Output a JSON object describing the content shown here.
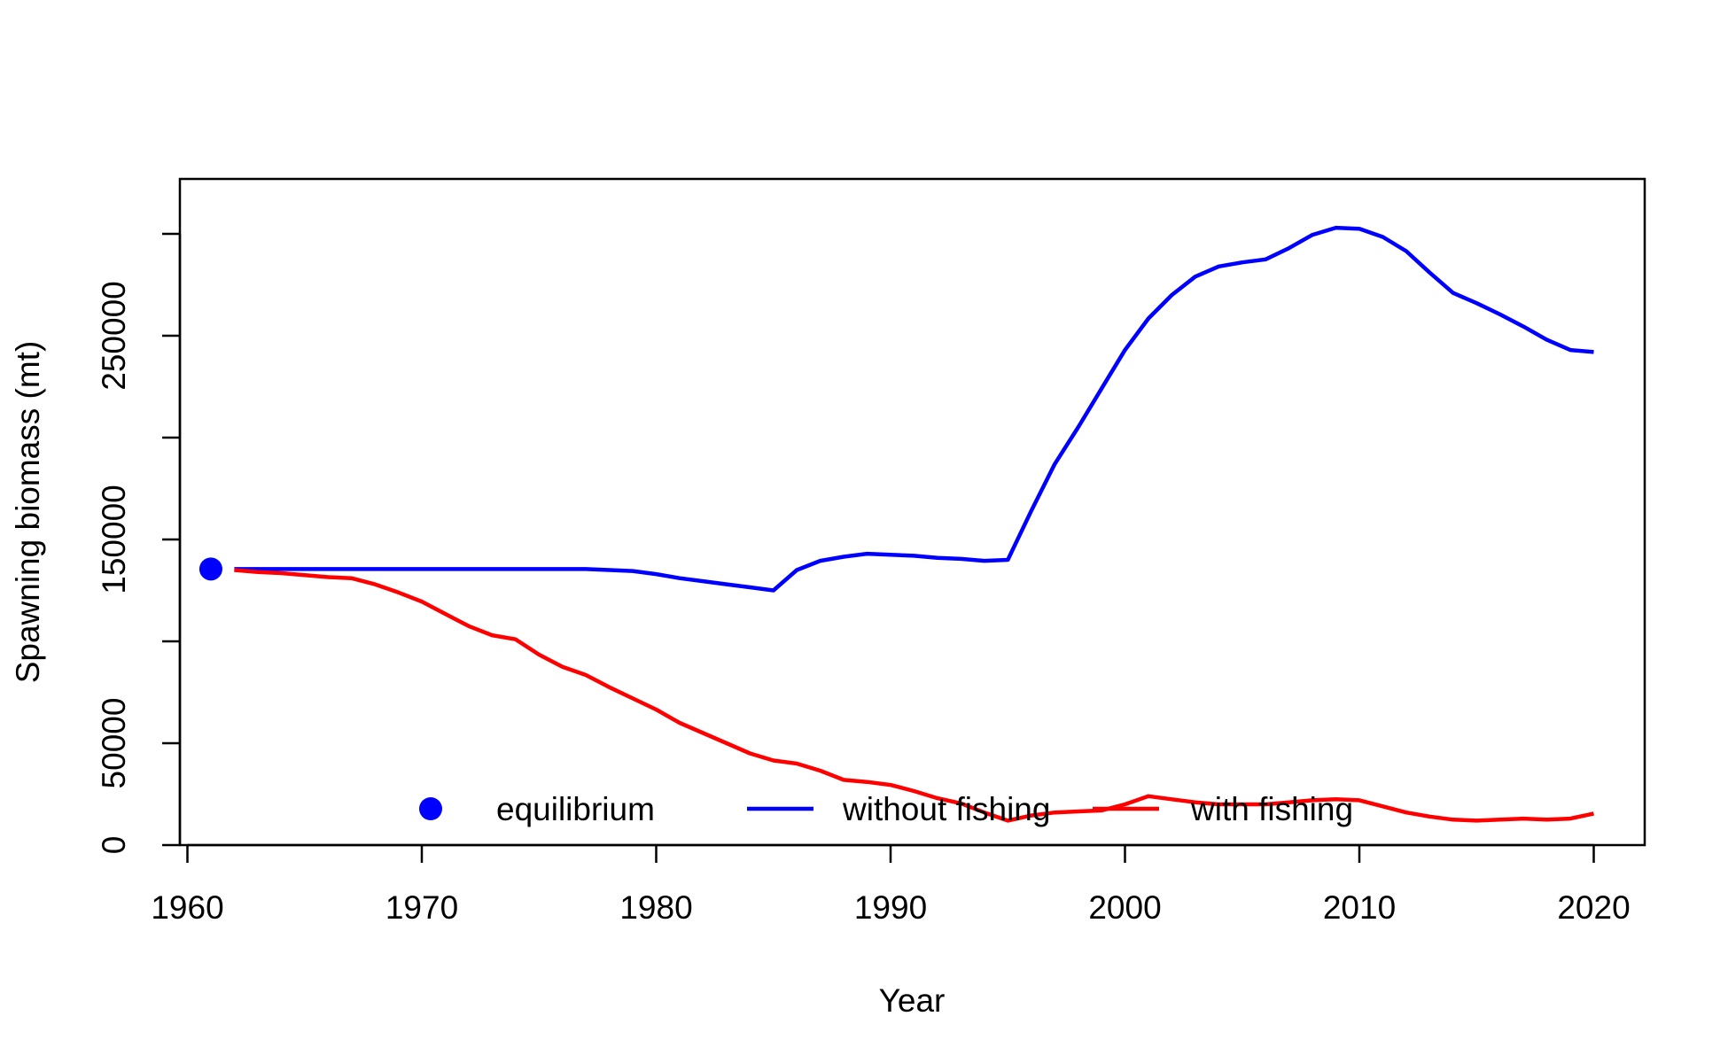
{
  "chart_data": {
    "type": "line",
    "title": "",
    "xlabel": "Year",
    "ylabel": "Spawning biomass (mt)",
    "xlim": [
      1960,
      2022.5
    ],
    "ylim": [
      0,
      328000
    ],
    "x_ticks": [
      1960,
      1970,
      1980,
      1990,
      2000,
      2010,
      2020
    ],
    "y_ticks": [
      0,
      50000,
      100000,
      150000,
      200000,
      250000,
      300000
    ],
    "y_tick_labels": [
      "0",
      "50000",
      "",
      "150000",
      "",
      "250000",
      ""
    ],
    "grid": false,
    "legend_position": "bottom",
    "legend": [
      {
        "label": "equilibrium",
        "kind": "point",
        "color": "#0000ff"
      },
      {
        "label": "without fishing",
        "kind": "line",
        "color": "#0000ff"
      },
      {
        "label": "with fishing",
        "kind": "line",
        "color": "#ff0000"
      }
    ],
    "equilibrium": {
      "x": 1961,
      "y": 135500,
      "color": "#0000ff"
    },
    "series": [
      {
        "name": "without fishing",
        "color": "#0000ff",
        "x": [
          1962,
          1963,
          1964,
          1965,
          1966,
          1967,
          1968,
          1969,
          1970,
          1971,
          1972,
          1973,
          1974,
          1975,
          1976,
          1977,
          1978,
          1979,
          1980,
          1981,
          1982,
          1983,
          1984,
          1985,
          1986,
          1987,
          1988,
          1989,
          1990,
          1991,
          1992,
          1993,
          1994,
          1995,
          1996,
          1997,
          1998,
          1999,
          2000,
          2001,
          2002,
          2003,
          2004,
          2005,
          2006,
          2007,
          2008,
          2009,
          2010,
          2011,
          2012,
          2013,
          2014,
          2015,
          2016,
          2017,
          2018,
          2019,
          2020
        ],
        "y": [
          135500,
          135500,
          135500,
          135500,
          135500,
          135500,
          135500,
          135500,
          135500,
          135500,
          135500,
          135500,
          135500,
          135500,
          135500,
          135500,
          135000,
          134500,
          133000,
          131000,
          129500,
          128000,
          126500,
          125000,
          135000,
          139500,
          141500,
          143000,
          142500,
          142000,
          141000,
          140500,
          139500,
          140000,
          164000,
          187000,
          205000,
          224000,
          243000,
          258500,
          270000,
          279000,
          284000,
          286000,
          287500,
          293000,
          299500,
          303000,
          302500,
          298500,
          291500,
          281000,
          271000,
          266000,
          260500,
          254500,
          248000,
          243000,
          242000
        ],
        "values": [
          135500,
          135500,
          135500,
          135500,
          135500,
          135500,
          135500,
          135500,
          135500,
          135500,
          135500,
          135500,
          135500,
          135500,
          135500,
          135500,
          135000,
          134500,
          133000,
          131000,
          129500,
          128000,
          126500,
          125000,
          135000,
          139500,
          141500,
          143000,
          142500,
          142000,
          141000,
          140500,
          139500,
          140000,
          164000,
          187000,
          205000,
          224000,
          243000,
          258500,
          270000,
          279000,
          284000,
          286000,
          287500,
          293000,
          299500,
          303000,
          302500,
          298500,
          291500,
          281000,
          271000,
          266000,
          260500,
          254500,
          248000,
          243000,
          242000
        ]
      },
      {
        "name": "with fishing",
        "color": "#ff0000",
        "x": [
          1962,
          1963,
          1964,
          1965,
          1966,
          1967,
          1968,
          1969,
          1970,
          1971,
          1972,
          1973,
          1974,
          1975,
          1976,
          1977,
          1978,
          1979,
          1980,
          1981,
          1982,
          1983,
          1984,
          1985,
          1986,
          1987,
          1988,
          1989,
          1990,
          1991,
          1992,
          1993,
          1994,
          1995,
          1996,
          1997,
          1998,
          1999,
          2000,
          2001,
          2002,
          2003,
          2004,
          2005,
          2006,
          2007,
          2008,
          2009,
          2010,
          2011,
          2012,
          2013,
          2014,
          2015,
          2016,
          2017,
          2018,
          2019,
          2020
        ],
        "y": [
          135000,
          134000,
          133500,
          132500,
          131500,
          131000,
          128000,
          124000,
          119500,
          113500,
          107500,
          103000,
          101000,
          93500,
          87500,
          83500,
          77500,
          72000,
          66500,
          60000,
          55000,
          50000,
          45000,
          41500,
          40000,
          36500,
          32000,
          31000,
          29500,
          26500,
          23000,
          20500,
          16000,
          12000,
          14500,
          16000,
          16500,
          17000,
          20000,
          24000,
          22500,
          21000,
          20000,
          20000,
          20000,
          21000,
          22000,
          22500,
          22000,
          19000,
          16000,
          14000,
          12500,
          12000,
          12500,
          13000,
          12500,
          13000,
          15500
        ],
        "values": [
          135000,
          134000,
          133500,
          132500,
          131500,
          131000,
          128000,
          124000,
          119500,
          113500,
          107500,
          103000,
          101000,
          93500,
          87500,
          83500,
          77500,
          72000,
          66500,
          60000,
          55000,
          50000,
          45000,
          41500,
          40000,
          36500,
          32000,
          31000,
          29500,
          26500,
          23000,
          20500,
          16000,
          12000,
          14500,
          16000,
          16500,
          17000,
          20000,
          24000,
          22500,
          21000,
          20000,
          20000,
          20000,
          21000,
          22000,
          22500,
          22000,
          19000,
          16000,
          14000,
          12500,
          12000,
          12500,
          13000,
          12500,
          13000,
          15500
        ]
      }
    ]
  }
}
